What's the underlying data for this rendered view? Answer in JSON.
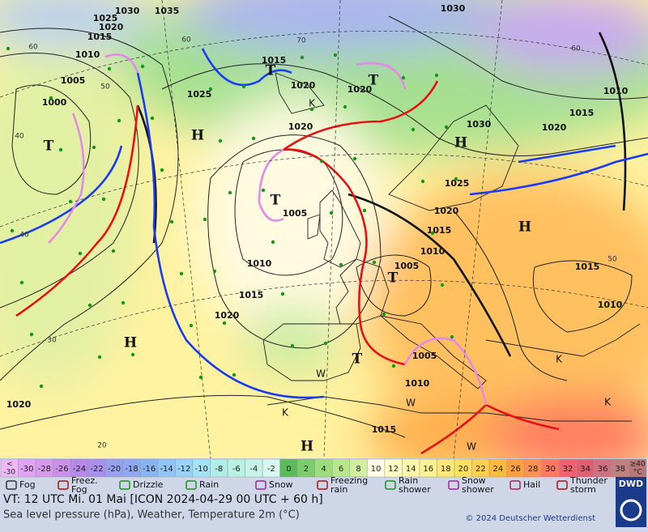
{
  "map": {
    "pressure_labels": [
      "1030",
      "1035",
      "1025",
      "1020",
      "1015",
      "1010",
      "1005",
      "1000",
      "1025",
      "1020",
      "1015",
      "1020",
      "1020",
      "1030",
      "1030",
      "1020",
      "1015",
      "1010",
      "1025",
      "1020",
      "1015",
      "1010",
      "1005",
      "1005",
      "1010",
      "1015",
      "1020",
      "1005",
      "1010",
      "1015",
      "1020",
      "1015",
      "1010"
    ],
    "pressure_centers": [
      "H",
      "H",
      "H",
      "H",
      "H",
      "T",
      "T",
      "T",
      "T",
      "T",
      "T"
    ],
    "grid_labels": [
      "60",
      "50",
      "40",
      "70",
      "60",
      "30",
      "20",
      "60",
      "50",
      "40"
    ],
    "other_labels": [
      "K",
      "K",
      "W",
      "W",
      "K",
      "K",
      "W"
    ]
  },
  "temperature_scale": {
    "low_label": [
      "<",
      "-30"
    ],
    "values": [
      -30,
      -28,
      -26,
      -24,
      -22,
      -20,
      -18,
      -16,
      -14,
      -12,
      -10,
      -8,
      -6,
      -4,
      -2,
      0,
      2,
      4,
      6,
      8,
      10,
      12,
      14,
      16,
      18,
      20,
      22,
      24,
      26,
      28,
      30,
      32,
      34,
      36,
      38
    ],
    "colors": [
      "#e2a4f2",
      "#d898ec",
      "#c890e8",
      "#b888e8",
      "#a890e8",
      "#98a0f0",
      "#90a8f0",
      "#88b4f0",
      "#90c4f8",
      "#98d2f8",
      "#a4e2f8",
      "#aeeee8",
      "#b8f2e0",
      "#c6f4e8",
      "#d6f8f0",
      "#5cbc5c",
      "#7ccc6c",
      "#9cdc7c",
      "#b8e88c",
      "#d0f0a0",
      "#ffffe8",
      "#ffffc4",
      "#fff8a8",
      "#fff090",
      "#ffe878",
      "#ffe060",
      "#ffd050",
      "#ffb840",
      "#ffa040",
      "#ff9050",
      "#ff7860",
      "#f06070",
      "#e06070",
      "#d07080",
      "#c08080"
    ],
    "high_label": [
      "≥40",
      "°C"
    ]
  },
  "weather_legend": [
    [
      "Fog"
    ],
    [
      "Freez.",
      "Fog"
    ],
    [
      "Drizzle"
    ],
    [
      "Rain"
    ],
    [
      "Snow"
    ],
    [
      "Freezing",
      "rain"
    ],
    [
      "Rain",
      "shower"
    ],
    [
      "Snow",
      "shower"
    ],
    [
      "Hail"
    ],
    [
      "Thunder",
      "storm"
    ]
  ],
  "logo": "DWD",
  "footer": {
    "valid_time": "VT: 12 UTC Mi.  01 Mai [ICON 2024-04-29  00 UTC + 60 h]",
    "description": "Sea level pressure (hPa), Weather, Temperature 2m (°C)",
    "copyright": "© 2024 Deutscher Wetterdienst"
  }
}
